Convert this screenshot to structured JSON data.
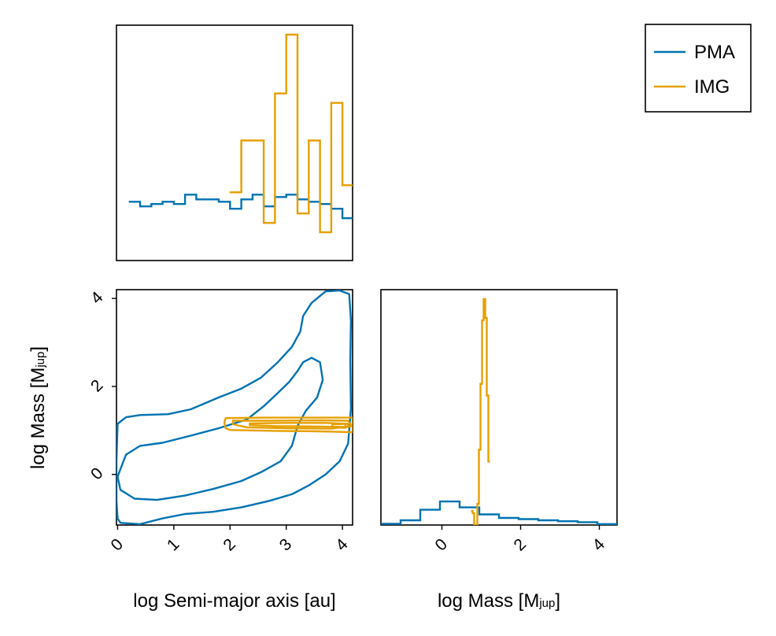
{
  "colors": {
    "PMA": "#0072b2",
    "IMG": "#e69f00",
    "frame": "#000000"
  },
  "legend": {
    "placement": "top-right",
    "entries": [
      {
        "label": "PMA",
        "series": "PMA"
      },
      {
        "label": "IMG",
        "series": "IMG"
      }
    ]
  },
  "labels": {
    "x_sma_main": "log Semi-major axis [au]",
    "x_mass_main": "log Mass [M",
    "x_mass_sub": "jup",
    "x_mass_end": "]",
    "y_mass_main": "log Mass [M",
    "y_mass_sub": "jup",
    "y_mass_end": "]"
  },
  "chart_data": [
    {
      "panel": "sma-histogram",
      "type": "histogram-step",
      "xlim": [
        -0.02,
        4.18
      ],
      "ylim": [
        0,
        1
      ],
      "show_y_ticks": false,
      "show_x_ticks": false,
      "series": [
        {
          "name": "PMA",
          "edges": [
            0.2,
            0.4,
            0.6,
            0.8,
            1.0,
            1.2,
            1.4,
            1.6,
            1.8,
            2.0,
            2.2,
            2.4,
            2.6,
            2.8,
            3.0,
            3.2,
            3.4,
            3.6,
            3.8,
            4.0,
            4.18
          ],
          "values": [
            0.25,
            0.23,
            0.24,
            0.25,
            0.24,
            0.28,
            0.26,
            0.26,
            0.25,
            0.22,
            0.26,
            0.28,
            0.23,
            0.27,
            0.28,
            0.26,
            0.25,
            0.24,
            0.22,
            0.18
          ]
        },
        {
          "name": "IMG",
          "edges": [
            1.99,
            2.2,
            2.6,
            2.8,
            3.0,
            3.2,
            3.4,
            3.6,
            3.8,
            4.0,
            4.18
          ],
          "values": [
            0.29,
            0.51,
            0.16,
            0.71,
            0.96,
            0.2,
            0.51,
            0.12,
            0.67,
            0.32
          ]
        }
      ]
    },
    {
      "panel": "joint-contour",
      "type": "contour",
      "xlim": [
        -0.02,
        4.18
      ],
      "ylim": [
        -1.15,
        4.2
      ],
      "x_ticks": [
        0,
        1,
        2,
        3,
        4
      ],
      "y_ticks": [
        0,
        2,
        4
      ],
      "series": [
        {
          "name": "PMA",
          "contours": [
            [
              [
                0.05,
                -1.1
              ],
              [
                0.4,
                -1.13
              ],
              [
                0.8,
                -1.0
              ],
              [
                1.2,
                -0.9
              ],
              [
                1.7,
                -0.85
              ],
              [
                2.2,
                -0.75
              ],
              [
                2.7,
                -0.6
              ],
              [
                3.1,
                -0.45
              ],
              [
                3.4,
                -0.25
              ],
              [
                3.7,
                0.0
              ],
              [
                3.95,
                0.3
              ],
              [
                4.1,
                0.7
              ],
              [
                4.15,
                1.5
              ],
              [
                4.14,
                2.6
              ],
              [
                4.15,
                3.5
              ],
              [
                4.12,
                4.1
              ],
              [
                3.95,
                4.18
              ],
              [
                3.7,
                4.16
              ],
              [
                3.45,
                3.9
              ],
              [
                3.3,
                3.6
              ],
              [
                3.25,
                3.25
              ],
              [
                3.1,
                2.9
              ],
              [
                2.85,
                2.55
              ],
              [
                2.55,
                2.2
              ],
              [
                2.2,
                1.95
              ],
              [
                1.8,
                1.75
              ],
              [
                1.3,
                1.48
              ],
              [
                0.9,
                1.37
              ],
              [
                0.4,
                1.35
              ],
              [
                0.15,
                1.3
              ],
              [
                0.0,
                1.15
              ],
              [
                -0.02,
                0.3
              ],
              [
                -0.02,
                -0.6
              ],
              [
                0.0,
                -1.0
              ],
              [
                0.05,
                -1.1
              ]
            ],
            [
              [
                0.0,
                -0.05
              ],
              [
                0.15,
                0.45
              ],
              [
                0.4,
                0.65
              ],
              [
                0.8,
                0.72
              ],
              [
                1.3,
                0.88
              ],
              [
                1.8,
                1.05
              ],
              [
                2.3,
                1.25
              ],
              [
                2.6,
                1.55
              ],
              [
                2.85,
                1.85
              ],
              [
                3.05,
                2.1
              ],
              [
                3.2,
                2.35
              ],
              [
                3.3,
                2.55
              ],
              [
                3.45,
                2.65
              ],
              [
                3.6,
                2.55
              ],
              [
                3.65,
                2.15
              ],
              [
                3.55,
                1.75
              ],
              [
                3.35,
                1.45
              ],
              [
                3.2,
                1.1
              ],
              [
                3.1,
                0.65
              ],
              [
                2.9,
                0.3
              ],
              [
                2.55,
                0.05
              ],
              [
                2.2,
                -0.15
              ],
              [
                1.7,
                -0.33
              ],
              [
                1.2,
                -0.48
              ],
              [
                0.7,
                -0.58
              ],
              [
                0.3,
                -0.55
              ],
              [
                0.05,
                -0.35
              ],
              [
                0.0,
                -0.05
              ]
            ]
          ]
        },
        {
          "name": "IMG",
          "contours": [
            [
              [
                1.92,
                1.28
              ],
              [
                2.6,
                1.29
              ],
              [
                3.4,
                1.29
              ],
              [
                4.18,
                1.29
              ],
              [
                4.18,
                0.96
              ],
              [
                3.6,
                0.98
              ],
              [
                2.8,
                0.99
              ],
              [
                2.0,
                1.01
              ],
              [
                1.92,
                1.05
              ],
              [
                1.9,
                1.18
              ],
              [
                1.92,
                1.28
              ]
            ],
            [
              [
                2.05,
                1.22
              ],
              [
                2.8,
                1.22
              ],
              [
                3.6,
                1.23
              ],
              [
                4.1,
                1.22
              ],
              [
                4.16,
                1.1
              ],
              [
                3.8,
                1.04
              ],
              [
                3.0,
                1.05
              ],
              [
                2.3,
                1.07
              ],
              [
                2.05,
                1.14
              ],
              [
                2.05,
                1.22
              ]
            ],
            [
              [
                2.35,
                1.16
              ],
              [
                3.0,
                1.17
              ],
              [
                3.7,
                1.17
              ],
              [
                4.1,
                1.15
              ],
              [
                4.1,
                1.08
              ],
              [
                3.5,
                1.09
              ],
              [
                2.8,
                1.1
              ],
              [
                2.35,
                1.12
              ],
              [
                2.35,
                1.16
              ]
            ],
            [
              [
                3.82,
                1.14
              ],
              [
                4.05,
                1.15
              ],
              [
                4.06,
                1.06
              ],
              [
                3.82,
                1.07
              ],
              [
                3.82,
                1.14
              ]
            ]
          ]
        }
      ]
    },
    {
      "panel": "mass-histogram",
      "type": "histogram-step",
      "xlim": [
        -1.55,
        4.45
      ],
      "ylim": [
        0,
        1
      ],
      "x_ticks": [
        0,
        2,
        4
      ],
      "show_y_ticks": false,
      "series": [
        {
          "name": "PMA",
          "edges": [
            -1.55,
            -1.05,
            -0.55,
            -0.05,
            0.45,
            0.95,
            1.45,
            1.95,
            2.45,
            2.95,
            3.45,
            3.95,
            4.45
          ],
          "values": [
            0.005,
            0.02,
            0.065,
            0.1,
            0.075,
            0.045,
            0.03,
            0.025,
            0.02,
            0.016,
            0.012,
            0.004
          ]
        },
        {
          "name": "IMG",
          "edges": [
            0.74,
            0.78,
            0.82,
            0.86,
            0.9,
            0.94,
            0.98,
            1.02,
            1.06,
            1.1,
            1.14,
            1.18,
            1.22
          ],
          "values": [
            0.06,
            0.05,
            0.0,
            0.0,
            0.09,
            0.32,
            0.6,
            0.87,
            0.96,
            0.88,
            0.55,
            0.27
          ]
        }
      ]
    }
  ]
}
